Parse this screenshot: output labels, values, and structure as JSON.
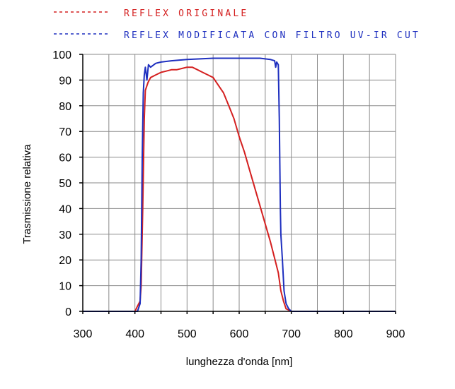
{
  "chart_data": {
    "type": "line",
    "xlabel": "lunghezza d'onda [nm]",
    "ylabel": "Trasmissione relativa",
    "xlim": [
      300,
      900
    ],
    "ylim": [
      0,
      100
    ],
    "xticks": [
      "300",
      "400",
      "500",
      "600",
      "700",
      "800",
      "900"
    ],
    "yticks": [
      "0",
      "10",
      "20",
      "30",
      "40",
      "50",
      "60",
      "70",
      "80",
      "90",
      "100"
    ],
    "grid": true,
    "legend_position": "top",
    "series": [
      {
        "name": "REFLEX ORIGINALE",
        "color": "#d42020",
        "points": [
          [
            300,
            0
          ],
          [
            400,
            0
          ],
          [
            405,
            2
          ],
          [
            410,
            4
          ],
          [
            412,
            10
          ],
          [
            415,
            40
          ],
          [
            418,
            75
          ],
          [
            420,
            86
          ],
          [
            425,
            89
          ],
          [
            430,
            91
          ],
          [
            440,
            92
          ],
          [
            450,
            93
          ],
          [
            460,
            93.5
          ],
          [
            470,
            94
          ],
          [
            480,
            94
          ],
          [
            490,
            94.5
          ],
          [
            500,
            95
          ],
          [
            510,
            95
          ],
          [
            520,
            94
          ],
          [
            530,
            93
          ],
          [
            540,
            92
          ],
          [
            550,
            91
          ],
          [
            560,
            88
          ],
          [
            570,
            85
          ],
          [
            580,
            80
          ],
          [
            590,
            75
          ],
          [
            600,
            68
          ],
          [
            610,
            62
          ],
          [
            620,
            55
          ],
          [
            630,
            48
          ],
          [
            640,
            41
          ],
          [
            650,
            34
          ],
          [
            660,
            27
          ],
          [
            670,
            19
          ],
          [
            675,
            15
          ],
          [
            680,
            8
          ],
          [
            685,
            4
          ],
          [
            690,
            1
          ],
          [
            700,
            0
          ],
          [
            710,
            0
          ],
          [
            900,
            0
          ]
        ]
      },
      {
        "name": "REFLEX MODIFICATA CON FILTRO UV-IR CUT",
        "color": "#1e2fbf",
        "points": [
          [
            300,
            0
          ],
          [
            405,
            0
          ],
          [
            410,
            3
          ],
          [
            412,
            20
          ],
          [
            414,
            60
          ],
          [
            416,
            85
          ],
          [
            418,
            92
          ],
          [
            420,
            95
          ],
          [
            423,
            90
          ],
          [
            426,
            96
          ],
          [
            430,
            95
          ],
          [
            440,
            96.5
          ],
          [
            450,
            97
          ],
          [
            470,
            97.5
          ],
          [
            500,
            98
          ],
          [
            550,
            98.5
          ],
          [
            600,
            98.5
          ],
          [
            640,
            98.5
          ],
          [
            660,
            98
          ],
          [
            668,
            97.5
          ],
          [
            670,
            95
          ],
          [
            672,
            97
          ],
          [
            675,
            96
          ],
          [
            677,
            75
          ],
          [
            679,
            40
          ],
          [
            680,
            30
          ],
          [
            683,
            20
          ],
          [
            686,
            8
          ],
          [
            690,
            3
          ],
          [
            695,
            1
          ],
          [
            700,
            0
          ],
          [
            900,
            0
          ]
        ]
      }
    ]
  }
}
